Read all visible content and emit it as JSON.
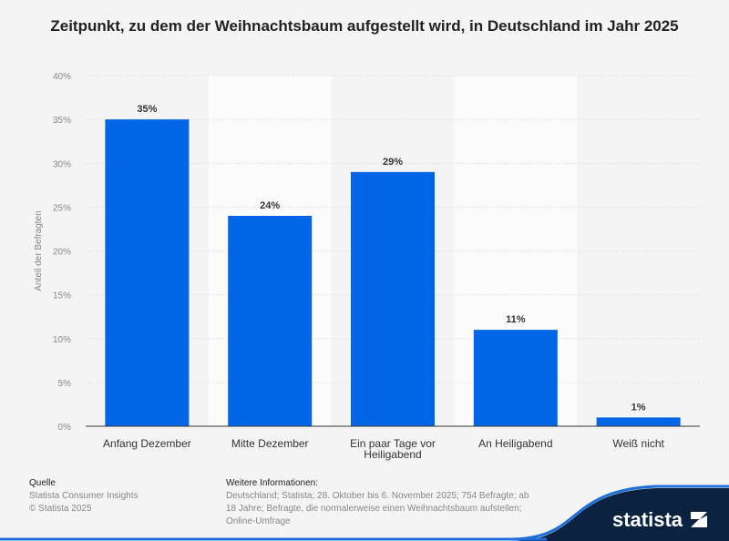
{
  "chart_data": {
    "type": "bar",
    "title": "Zeitpunkt, zu dem der Weihnachtsbaum aufgestellt wird, in Deutschland im Jahr 2025",
    "ylabel": "Anteil der Befragten",
    "xlabel": "",
    "categories": [
      "Anfang Dezember",
      "Mitte Dezember",
      "Ein paar Tage vor Heiligabend",
      "An Heiligabend",
      "Weiß nicht"
    ],
    "values": [
      35,
      24,
      29,
      11,
      1
    ],
    "data_labels": [
      "35%",
      "24%",
      "29%",
      "11%",
      "1%"
    ],
    "ylim": [
      0,
      40
    ],
    "yticks": [
      0,
      5,
      10,
      15,
      20,
      25,
      30,
      35,
      40
    ],
    "ytick_labels": [
      "0%",
      "5%",
      "10%",
      "15%",
      "20%",
      "25%",
      "30%",
      "35%",
      "40%"
    ],
    "grid": true,
    "bar_color": "#0066e6"
  },
  "footer": {
    "source_heading": "Quelle",
    "source_lines": [
      "Statista Consumer Insights",
      "© Statista 2025"
    ],
    "info_heading": "Weitere Informationen:",
    "info_lines": [
      "Deutschland; Statista; 28. Oktober bis 6. November 2025; 754 Befragte; ab",
      "18 Jahre; Befragte, die normalerweise einen Weihnachtsbaum aufstellen;",
      "Online-Umfrage"
    ],
    "logo": "statista"
  }
}
